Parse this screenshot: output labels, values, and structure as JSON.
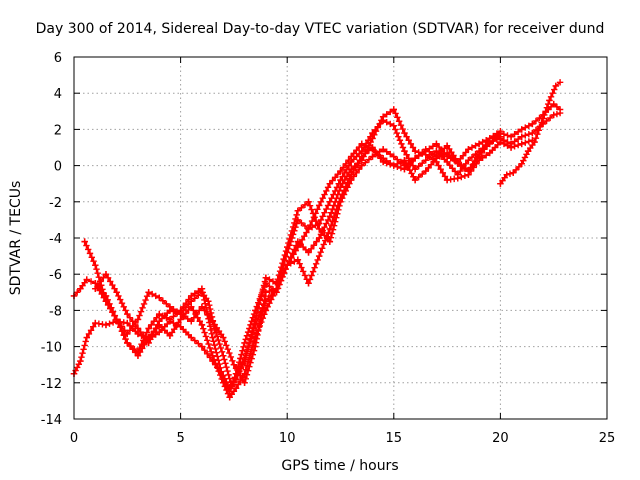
{
  "chart_data": {
    "type": "scatter",
    "title": "Day 300 of 2014, Sidereal Day-to-day VTEC variation (SDTVAR) for receiver dund",
    "xlabel": "GPS time / hours",
    "ylabel": "SDTVAR / TECUs",
    "xlim": [
      0,
      25
    ],
    "ylim": [
      -14,
      6
    ],
    "xticks": [
      "0",
      "5",
      "10",
      "15",
      "20",
      "25"
    ],
    "yticks": [
      "-14",
      "-12",
      "-10",
      "-8",
      "-6",
      "-4",
      "-2",
      "0",
      "2",
      "4",
      "6"
    ],
    "grid": true,
    "marker": "+",
    "series": [
      {
        "color": "#ff0000",
        "x": [
          0.0,
          0.3,
          0.6,
          1.0,
          1.5,
          2.0,
          2.5,
          3.0,
          3.5,
          4.0,
          4.5,
          5.0,
          5.5,
          6.0,
          6.5,
          7.0,
          7.3,
          7.6,
          8.0,
          8.5,
          9.0,
          9.5,
          10.0,
          10.5,
          11.0,
          11.5,
          12.0,
          12.5,
          13.0,
          13.5,
          14.0,
          14.5,
          15.0,
          15.5,
          16.0,
          16.5,
          17.0,
          17.5,
          18.0,
          18.5,
          19.0,
          19.5,
          20.0,
          20.5,
          21.0,
          21.5,
          22.0,
          22.5,
          22.8
        ],
        "y": [
          -7.2,
          -6.8,
          -6.3,
          -6.5,
          -7.5,
          -8.5,
          -9.8,
          -10.3,
          -9.0,
          -8.2,
          -8.5,
          -8.0,
          -7.2,
          -6.8,
          -9.5,
          -11.8,
          -12.5,
          -11.5,
          -9.8,
          -8.0,
          -6.5,
          -7.0,
          -5.5,
          -4.5,
          -3.5,
          -3.2,
          -2.0,
          -0.8,
          0.2,
          0.8,
          1.8,
          2.5,
          2.2,
          0.8,
          -0.2,
          0.3,
          0.8,
          0.2,
          -0.5,
          0.3,
          0.8,
          1.2,
          1.8,
          1.6,
          2.0,
          2.3,
          2.8,
          3.4,
          3.1
        ]
      },
      {
        "color": "#ff0000",
        "x": [
          0.0,
          0.3,
          0.6,
          1.0,
          1.5,
          2.0,
          2.5,
          3.0,
          3.5,
          4.0,
          4.5,
          5.0,
          5.5,
          6.0,
          6.5,
          7.0,
          7.3,
          7.6,
          8.0,
          8.5,
          9.0,
          9.5,
          10.0,
          10.5,
          11.0,
          11.5,
          12.0,
          12.5,
          13.0,
          13.5,
          14.0,
          14.5,
          15.0,
          15.5,
          16.0,
          16.5,
          17.0,
          17.5,
          18.0,
          18.5,
          19.0,
          19.5,
          20.0,
          20.5,
          21.0,
          21.5,
          22.0,
          22.5,
          22.8
        ],
        "y": [
          -11.5,
          -10.8,
          -9.5,
          -8.7,
          -8.8,
          -8.6,
          -8.7,
          -9.3,
          -9.6,
          -9.2,
          -8.6,
          -8.9,
          -9.5,
          -10.0,
          -10.8,
          -11.6,
          -12.3,
          -11.8,
          -10.7,
          -8.8,
          -7.5,
          -6.8,
          -4.8,
          -3.0,
          -3.5,
          -2.2,
          -1.0,
          -0.3,
          0.5,
          1.2,
          0.9,
          0.4,
          0.0,
          0.3,
          -0.8,
          -0.3,
          0.4,
          0.7,
          0.1,
          -0.3,
          0.5,
          1.3,
          1.5,
          1.2,
          1.6,
          1.8,
          2.3,
          2.8,
          2.9
        ]
      },
      {
        "color": "#ff0000",
        "x": [
          0.5,
          1.0,
          1.5,
          2.0,
          2.5,
          3.0,
          3.5,
          4.0,
          4.5,
          5.0,
          5.5,
          6.0,
          6.5,
          7.0,
          7.3,
          7.6,
          8.0,
          8.5,
          9.0,
          9.5,
          10.0,
          10.5,
          11.0,
          11.5,
          12.0,
          12.5,
          13.0,
          13.5,
          14.0,
          14.5,
          15.0,
          15.5,
          16.0,
          16.5,
          17.0,
          17.5,
          18.0,
          18.5,
          19.0,
          19.5,
          20.0,
          20.5,
          21.0,
          21.5
        ],
        "y": [
          -4.2,
          -5.5,
          -7.5,
          -8.5,
          -9.8,
          -10.5,
          -9.5,
          -8.8,
          -9.4,
          -8.5,
          -7.8,
          -8.8,
          -10.5,
          -12.0,
          -12.8,
          -12.3,
          -11.5,
          -9.5,
          -8.0,
          -6.8,
          -5.5,
          -4.2,
          -4.8,
          -4.0,
          -2.8,
          -1.2,
          -0.2,
          0.3,
          1.5,
          2.7,
          3.1,
          1.8,
          0.8,
          0.6,
          0.2,
          -0.8,
          -0.7,
          -0.5,
          0.3,
          0.7,
          1.3,
          1.0,
          1.2,
          1.4
        ]
      },
      {
        "color": "#ff0000",
        "x": [
          1.0,
          1.5,
          2.0,
          2.5,
          3.0,
          3.5,
          4.0,
          4.5,
          5.0,
          5.5,
          6.0,
          6.3,
          6.6,
          7.0,
          7.4,
          8.0,
          8.5,
          9.0,
          9.5,
          10.0,
          10.5,
          11.0,
          11.5,
          12.0,
          12.5,
          13.0,
          13.5,
          14.0,
          14.5,
          15.0,
          15.5,
          16.0,
          16.5,
          17.0,
          17.5,
          18.0,
          18.5,
          19.0,
          19.5,
          20.0
        ],
        "y": [
          -6.5,
          -7.2,
          -8.5,
          -9.3,
          -8.5,
          -7.0,
          -7.3,
          -7.8,
          -8.2,
          -7.5,
          -7.0,
          -7.5,
          -9.0,
          -10.5,
          -12.2,
          -10.8,
          -8.5,
          -6.2,
          -6.5,
          -4.5,
          -2.5,
          -2.0,
          -3.5,
          -4.2,
          -2.0,
          -0.8,
          0.0,
          0.5,
          0.9,
          0.5,
          0.0,
          0.4,
          0.9,
          0.5,
          1.1,
          0.2,
          -0.3,
          0.6,
          1.5,
          1.9
        ]
      },
      {
        "color": "#ff0000",
        "x": [
          1.0,
          1.5,
          2.0,
          2.5,
          3.0,
          3.5,
          4.0,
          4.5,
          5.0,
          5.5,
          6.0,
          6.5,
          7.0,
          7.5,
          8.0,
          8.5,
          9.0,
          9.5,
          10.0,
          10.5,
          11.0,
          11.5,
          12.0,
          12.5,
          13.0,
          13.5,
          14.0,
          14.5,
          15.0,
          15.5,
          16.0,
          16.5,
          17.0,
          17.5,
          18.0,
          18.5,
          19.0,
          19.5,
          20.0
        ],
        "y": [
          -6.8,
          -6.0,
          -7.0,
          -8.2,
          -9.0,
          -9.8,
          -8.6,
          -8.0,
          -8.2,
          -8.6,
          -7.8,
          -8.6,
          -9.5,
          -11.0,
          -12.0,
          -10.0,
          -7.0,
          -6.8,
          -5.5,
          -5.2,
          -6.5,
          -5.0,
          -3.5,
          -1.8,
          -0.5,
          0.5,
          1.0,
          0.2,
          0.0,
          -0.2,
          0.4,
          0.8,
          1.2,
          0.5,
          0.2,
          0.9,
          1.2,
          1.5,
          1.6
        ]
      },
      {
        "color": "#ff0000",
        "x": [
          20.0,
          20.3,
          20.6,
          21.0,
          21.3,
          21.6,
          22.0,
          22.3,
          22.6,
          22.8
        ],
        "y": [
          -1.0,
          -0.5,
          -0.4,
          0.1,
          0.8,
          1.3,
          2.6,
          3.6,
          4.4,
          4.6
        ]
      }
    ]
  }
}
